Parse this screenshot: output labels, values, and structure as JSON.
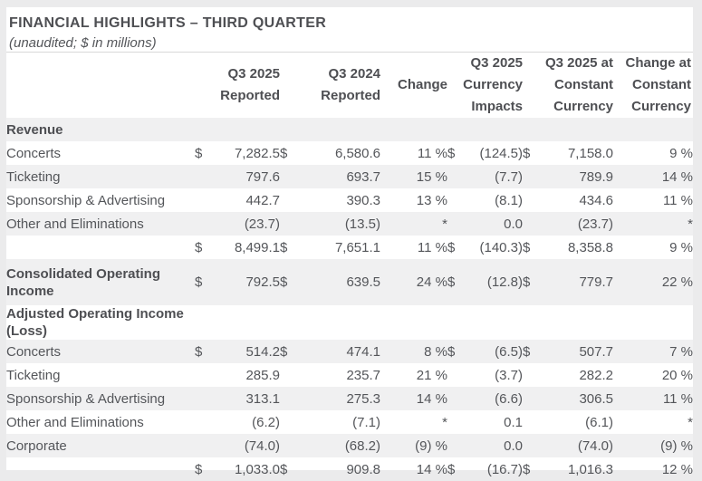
{
  "header": {
    "title": "FINANCIAL HIGHLIGHTS – THIRD QUARTER",
    "subtitle": "(unaudited; $ in millions)"
  },
  "table": {
    "columns": [
      "Q3 2025\nReported",
      "Q3 2024\nReported",
      "Change",
      "Q3 2025\nCurrency\nImpacts",
      "Q3 2025 at\nConstant\nCurrency",
      "Change at\nConstant\nCurrency"
    ],
    "rows": [
      {
        "label": "Revenue",
        "section": true,
        "cells": [
          "",
          "",
          "",
          "",
          "",
          "",
          "",
          "",
          "",
          ""
        ]
      },
      {
        "label": "Concerts",
        "cells": [
          "$",
          "7,282.5",
          "$",
          "6,580.6",
          "11 %",
          "$",
          "(124.5)",
          "$",
          "7,158.0",
          "9 %"
        ]
      },
      {
        "label": "Ticketing",
        "cells": [
          "",
          "797.6",
          "",
          "693.7",
          "15 %",
          "",
          "(7.7)",
          "",
          "789.9",
          "14 %"
        ]
      },
      {
        "label": "Sponsorship & Advertising",
        "cells": [
          "",
          "442.7",
          "",
          "390.3",
          "13 %",
          "",
          "(8.1)",
          "",
          "434.6",
          "11 %"
        ]
      },
      {
        "label": "Other and Eliminations",
        "cells": [
          "",
          "(23.7)",
          "",
          "(13.5)",
          "*",
          "",
          "0.0",
          "",
          "(23.7)",
          "*"
        ]
      },
      {
        "label": "",
        "total": true,
        "cells": [
          "$",
          "8,499.1",
          "$",
          "7,651.1",
          "11 %",
          "$",
          "(140.3)",
          "$",
          "8,358.8",
          "9 %"
        ]
      },
      {
        "label": "Consolidated Operating Income",
        "bold": true,
        "tall": true,
        "cells": [
          "$",
          "792.5",
          "$",
          "639.5",
          "24 %",
          "$",
          "(12.8)",
          "$",
          "779.7",
          "22 %"
        ]
      },
      {
        "label": "Adjusted Operating Income (Loss)",
        "section": true,
        "cells": [
          "",
          "",
          "",
          "",
          "",
          "",
          "",
          "",
          "",
          ""
        ]
      },
      {
        "label": "Concerts",
        "cells": [
          "$",
          "514.2",
          "$",
          "474.1",
          "8 %",
          "$",
          "(6.5)",
          "$",
          "507.7",
          "7 %"
        ]
      },
      {
        "label": "Ticketing",
        "cells": [
          "",
          "285.9",
          "",
          "235.7",
          "21 %",
          "",
          "(3.7)",
          "",
          "282.2",
          "20 %"
        ]
      },
      {
        "label": "Sponsorship & Advertising",
        "cells": [
          "",
          "313.1",
          "",
          "275.3",
          "14 %",
          "",
          "(6.6)",
          "",
          "306.5",
          "11 %"
        ]
      },
      {
        "label": "Other and Eliminations",
        "cells": [
          "",
          "(6.2)",
          "",
          "(7.1)",
          "*",
          "",
          "0.1",
          "",
          "(6.1)",
          "*"
        ]
      },
      {
        "label": "Corporate",
        "cells": [
          "",
          "(74.0)",
          "",
          "(68.2)",
          "(9) %",
          "",
          "0.0",
          "",
          "(74.0)",
          "(9) %"
        ]
      },
      {
        "label": "",
        "total": true,
        "cells": [
          "$",
          "1,033.0",
          "$",
          "909.8",
          "14 %",
          "$",
          "(16.7)",
          "$",
          "1,016.3",
          "12 %"
        ]
      }
    ]
  },
  "colors": {
    "stripe": "#f0f0f1",
    "page_background": "#ebebec",
    "text": "#54565a",
    "divider": "#d9d9d9"
  }
}
